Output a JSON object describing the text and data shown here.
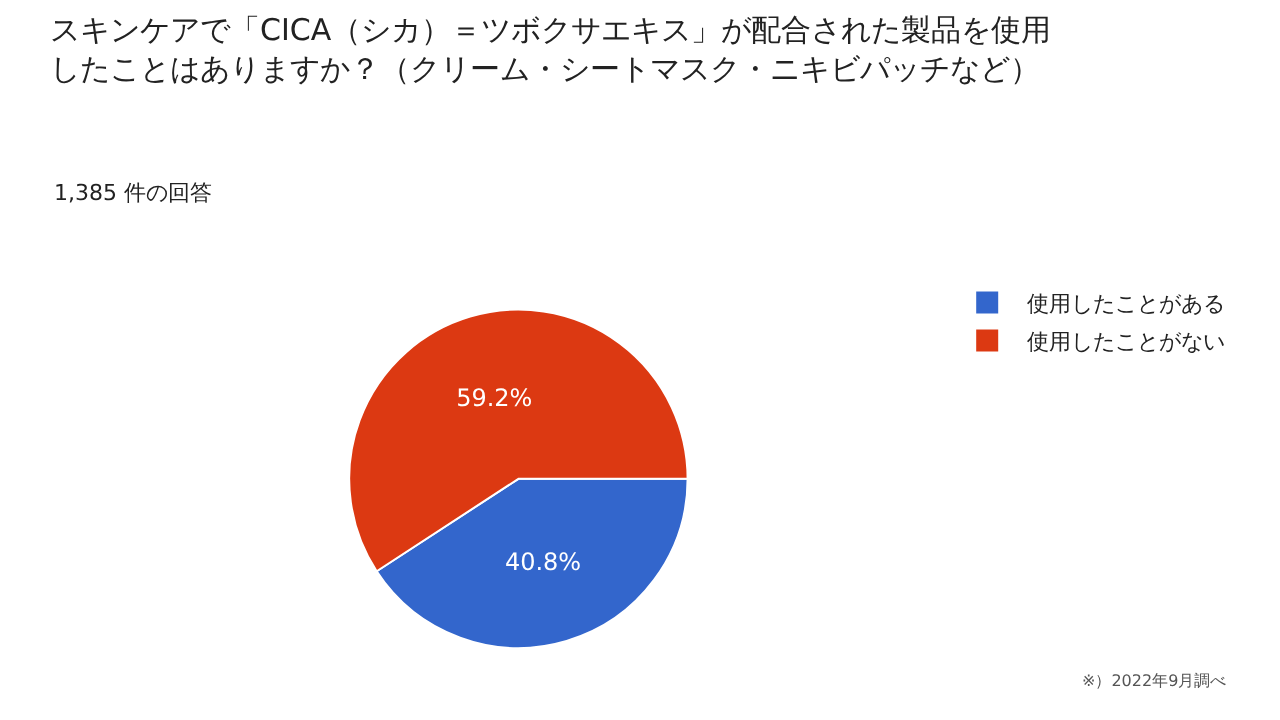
{
  "chart_data": {
    "type": "pie",
    "title": "スキンケアで「CICA（シカ）＝ツボクサエキス」が配合された製品を使用したことはありますか？（クリーム・シートマスク・ニキビパッチなど）",
    "subtitle": "1,385 件の回答",
    "categories": [
      "使用したことがある",
      "使用したことがない"
    ],
    "values": [
      40.8,
      59.2
    ],
    "colors": [
      "#3366cc",
      "#dc3912"
    ],
    "value_labels": [
      "40.8%",
      "59.2%"
    ],
    "legend": "right",
    "annotations": [
      "※）2022年9月調べ"
    ]
  }
}
